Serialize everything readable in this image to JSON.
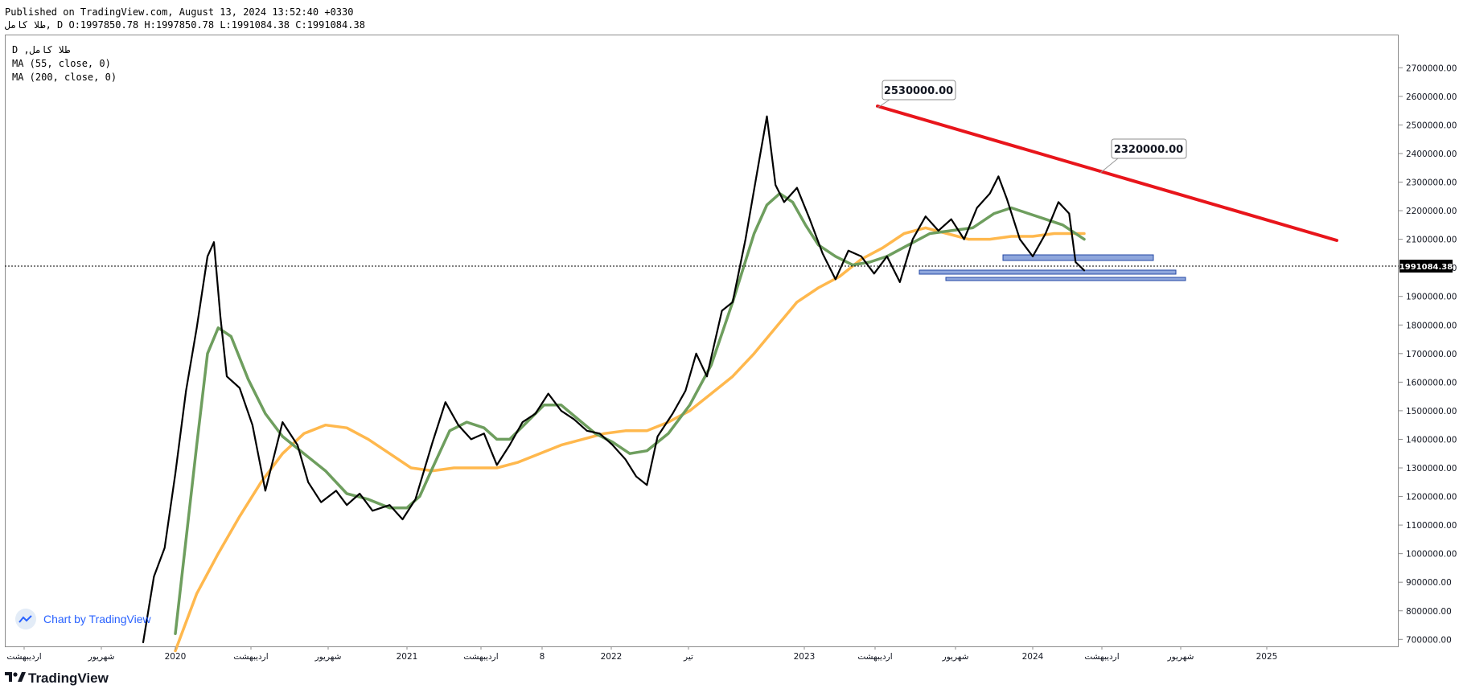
{
  "header": {
    "published": "Published on TradingView.com, August 13, 2024 13:52:40 +0330",
    "ohlc": "ﻃﻼ ﮐﺎﻣﻞ, D O:1997850.78 H:1997850.78 L:1991084.38 C:1991084.38"
  },
  "legend": {
    "symbol": "D ,ﻃﻼ ﮐﺎﻣﻞ",
    "ma55": "MA (55, close, 0)",
    "ma200": "MA (200, close, 0)"
  },
  "watermark": {
    "text": "Chart by TradingView"
  },
  "brand": {
    "text": "TradingView"
  },
  "colors": {
    "price": "#000000",
    "ma55": "#6e9e5e",
    "ma200": "#ffb84d",
    "trendline": "#e8151b",
    "zones": "#8ea6dc",
    "zone_border": "#2448a5"
  },
  "chart_data": {
    "type": "line",
    "y_axis": {
      "ticks": [
        "700000.00",
        "800000.00",
        "900000.00",
        "1000000.00",
        "1100000.00",
        "1200000.00",
        "1300000.00",
        "1400000.00",
        "1500000.00",
        "1600000.00",
        "1700000.00",
        "1800000.00",
        "1900000.00",
        "2000000.00",
        "2100000.00",
        "2200000.00",
        "2300000.00",
        "2400000.00",
        "2500000.00",
        "2600000.00",
        "2700000.00"
      ],
      "last_price_label": "1991084.38"
    },
    "x_axis": {
      "ticks": [
        "اردیبهشت",
        "شهریور",
        "2020",
        "اردیبهشت",
        "شهریور",
        "2021",
        "اردیبهشت",
        "8",
        "2022",
        "تیر",
        "2023",
        "اردیبهشت",
        "شهریور",
        "2024",
        "اردیبهشت",
        "شهریور",
        "2025"
      ]
    },
    "last_price": 1991084.38,
    "callouts": [
      {
        "label": "2530000.00",
        "value": 2530000
      },
      {
        "label": "2320000.00",
        "value": 2320000
      }
    ],
    "series": [
      {
        "name": "Price",
        "points": [
          [
            2019.85,
            690000
          ],
          [
            2019.9,
            920000
          ],
          [
            2019.95,
            1020000
          ],
          [
            2020.0,
            1280000
          ],
          [
            2020.05,
            1570000
          ],
          [
            2020.1,
            1790000
          ],
          [
            2020.15,
            2040000
          ],
          [
            2020.18,
            2090000
          ],
          [
            2020.21,
            1830000
          ],
          [
            2020.24,
            1620000
          ],
          [
            2020.3,
            1580000
          ],
          [
            2020.36,
            1450000
          ],
          [
            2020.42,
            1220000
          ],
          [
            2020.5,
            1460000
          ],
          [
            2020.57,
            1380000
          ],
          [
            2020.62,
            1250000
          ],
          [
            2020.68,
            1180000
          ],
          [
            2020.75,
            1220000
          ],
          [
            2020.8,
            1170000
          ],
          [
            2020.86,
            1210000
          ],
          [
            2020.92,
            1150000
          ],
          [
            2021.0,
            1170000
          ],
          [
            2021.06,
            1120000
          ],
          [
            2021.12,
            1190000
          ],
          [
            2021.2,
            1390000
          ],
          [
            2021.26,
            1530000
          ],
          [
            2021.32,
            1450000
          ],
          [
            2021.38,
            1400000
          ],
          [
            2021.44,
            1420000
          ],
          [
            2021.5,
            1310000
          ],
          [
            2021.56,
            1380000
          ],
          [
            2021.62,
            1460000
          ],
          [
            2021.68,
            1490000
          ],
          [
            2021.74,
            1560000
          ],
          [
            2021.8,
            1500000
          ],
          [
            2021.86,
            1470000
          ],
          [
            2021.92,
            1430000
          ],
          [
            2021.98,
            1420000
          ],
          [
            2022.04,
            1380000
          ],
          [
            2022.1,
            1330000
          ],
          [
            2022.15,
            1270000
          ],
          [
            2022.2,
            1240000
          ],
          [
            2022.25,
            1410000
          ],
          [
            2022.32,
            1490000
          ],
          [
            2022.38,
            1570000
          ],
          [
            2022.43,
            1700000
          ],
          [
            2022.48,
            1620000
          ],
          [
            2022.55,
            1850000
          ],
          [
            2022.6,
            1880000
          ],
          [
            2022.66,
            2100000
          ],
          [
            2022.72,
            2360000
          ],
          [
            2022.76,
            2530000
          ],
          [
            2022.8,
            2290000
          ],
          [
            2022.84,
            2230000
          ],
          [
            2022.9,
            2280000
          ],
          [
            2022.96,
            2170000
          ],
          [
            2023.02,
            2050000
          ],
          [
            2023.08,
            1960000
          ],
          [
            2023.14,
            2060000
          ],
          [
            2023.2,
            2040000
          ],
          [
            2023.26,
            1980000
          ],
          [
            2023.32,
            2040000
          ],
          [
            2023.38,
            1950000
          ],
          [
            2023.44,
            2100000
          ],
          [
            2023.5,
            2180000
          ],
          [
            2023.56,
            2130000
          ],
          [
            2023.62,
            2170000
          ],
          [
            2023.68,
            2100000
          ],
          [
            2023.74,
            2210000
          ],
          [
            2023.8,
            2260000
          ],
          [
            2023.84,
            2320000
          ],
          [
            2023.88,
            2240000
          ],
          [
            2023.94,
            2100000
          ],
          [
            2024.0,
            2040000
          ],
          [
            2024.06,
            2120000
          ],
          [
            2024.12,
            2230000
          ],
          [
            2024.17,
            2190000
          ],
          [
            2024.2,
            2020000
          ],
          [
            2024.24,
            1991084
          ]
        ]
      },
      {
        "name": "MA (55, close, 0)",
        "points": [
          [
            2020.0,
            720000
          ],
          [
            2020.05,
            1050000
          ],
          [
            2020.1,
            1380000
          ],
          [
            2020.15,
            1700000
          ],
          [
            2020.2,
            1790000
          ],
          [
            2020.26,
            1760000
          ],
          [
            2020.34,
            1610000
          ],
          [
            2020.42,
            1490000
          ],
          [
            2020.5,
            1410000
          ],
          [
            2020.6,
            1350000
          ],
          [
            2020.7,
            1290000
          ],
          [
            2020.8,
            1210000
          ],
          [
            2020.9,
            1190000
          ],
          [
            2021.0,
            1160000
          ],
          [
            2021.08,
            1160000
          ],
          [
            2021.14,
            1200000
          ],
          [
            2021.2,
            1300000
          ],
          [
            2021.28,
            1430000
          ],
          [
            2021.36,
            1460000
          ],
          [
            2021.44,
            1440000
          ],
          [
            2021.5,
            1400000
          ],
          [
            2021.56,
            1400000
          ],
          [
            2021.64,
            1460000
          ],
          [
            2021.72,
            1520000
          ],
          [
            2021.8,
            1520000
          ],
          [
            2021.88,
            1470000
          ],
          [
            2021.96,
            1420000
          ],
          [
            2022.04,
            1390000
          ],
          [
            2022.12,
            1350000
          ],
          [
            2022.2,
            1360000
          ],
          [
            2022.3,
            1420000
          ],
          [
            2022.4,
            1520000
          ],
          [
            2022.5,
            1660000
          ],
          [
            2022.6,
            1880000
          ],
          [
            2022.7,
            2120000
          ],
          [
            2022.76,
            2220000
          ],
          [
            2022.82,
            2260000
          ],
          [
            2022.88,
            2230000
          ],
          [
            2022.94,
            2150000
          ],
          [
            2023.0,
            2080000
          ],
          [
            2023.08,
            2040000
          ],
          [
            2023.16,
            2010000
          ],
          [
            2023.24,
            2020000
          ],
          [
            2023.32,
            2040000
          ],
          [
            2023.42,
            2080000
          ],
          [
            2023.52,
            2120000
          ],
          [
            2023.62,
            2130000
          ],
          [
            2023.72,
            2140000
          ],
          [
            2023.82,
            2190000
          ],
          [
            2023.9,
            2210000
          ],
          [
            2023.98,
            2190000
          ],
          [
            2024.06,
            2170000
          ],
          [
            2024.14,
            2150000
          ],
          [
            2024.24,
            2100000
          ]
        ]
      },
      {
        "name": "MA (200, close, 0)",
        "points": [
          [
            2020.0,
            660000
          ],
          [
            2020.1,
            860000
          ],
          [
            2020.2,
            1000000
          ],
          [
            2020.3,
            1130000
          ],
          [
            2020.4,
            1250000
          ],
          [
            2020.5,
            1350000
          ],
          [
            2020.6,
            1420000
          ],
          [
            2020.7,
            1450000
          ],
          [
            2020.8,
            1440000
          ],
          [
            2020.9,
            1400000
          ],
          [
            2021.0,
            1350000
          ],
          [
            2021.1,
            1300000
          ],
          [
            2021.2,
            1290000
          ],
          [
            2021.3,
            1300000
          ],
          [
            2021.4,
            1300000
          ],
          [
            2021.5,
            1300000
          ],
          [
            2021.6,
            1320000
          ],
          [
            2021.7,
            1350000
          ],
          [
            2021.8,
            1380000
          ],
          [
            2021.9,
            1400000
          ],
          [
            2022.0,
            1420000
          ],
          [
            2022.1,
            1430000
          ],
          [
            2022.2,
            1430000
          ],
          [
            2022.3,
            1460000
          ],
          [
            2022.4,
            1500000
          ],
          [
            2022.5,
            1560000
          ],
          [
            2022.6,
            1620000
          ],
          [
            2022.7,
            1700000
          ],
          [
            2022.8,
            1790000
          ],
          [
            2022.9,
            1880000
          ],
          [
            2023.0,
            1930000
          ],
          [
            2023.1,
            1970000
          ],
          [
            2023.2,
            2030000
          ],
          [
            2023.3,
            2070000
          ],
          [
            2023.4,
            2120000
          ],
          [
            2023.5,
            2140000
          ],
          [
            2023.6,
            2120000
          ],
          [
            2023.7,
            2100000
          ],
          [
            2023.8,
            2100000
          ],
          [
            2023.9,
            2110000
          ],
          [
            2024.0,
            2110000
          ],
          [
            2024.1,
            2120000
          ],
          [
            2024.24,
            2120000
          ]
        ]
      }
    ]
  }
}
